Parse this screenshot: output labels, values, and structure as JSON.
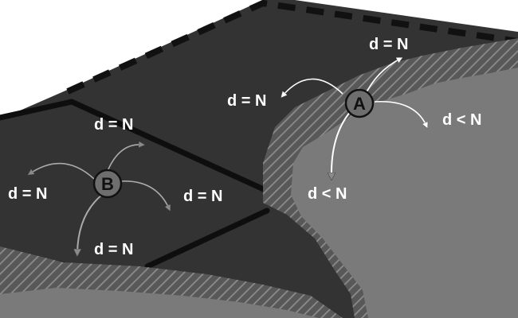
{
  "diagram": {
    "nodes": [
      {
        "id": "A",
        "label": "A"
      },
      {
        "id": "B",
        "label": "B"
      }
    ],
    "labels": {
      "a_up": "d = N",
      "a_left": "d = N",
      "a_right": "d < N",
      "a_down": "d < N",
      "b_up": "d = N",
      "b_left": "d = N",
      "b_right": "d = N",
      "b_down": "d = N"
    },
    "colors": {
      "land": "#7a7a7a",
      "dark_region": "#333333",
      "border_line": "#0e0e0e",
      "coast_band": "#5a5a5a",
      "hatch_stripe": "#8a8a8a",
      "node_fill": "#6e6e6e",
      "label_text": "#ffffff"
    }
  }
}
